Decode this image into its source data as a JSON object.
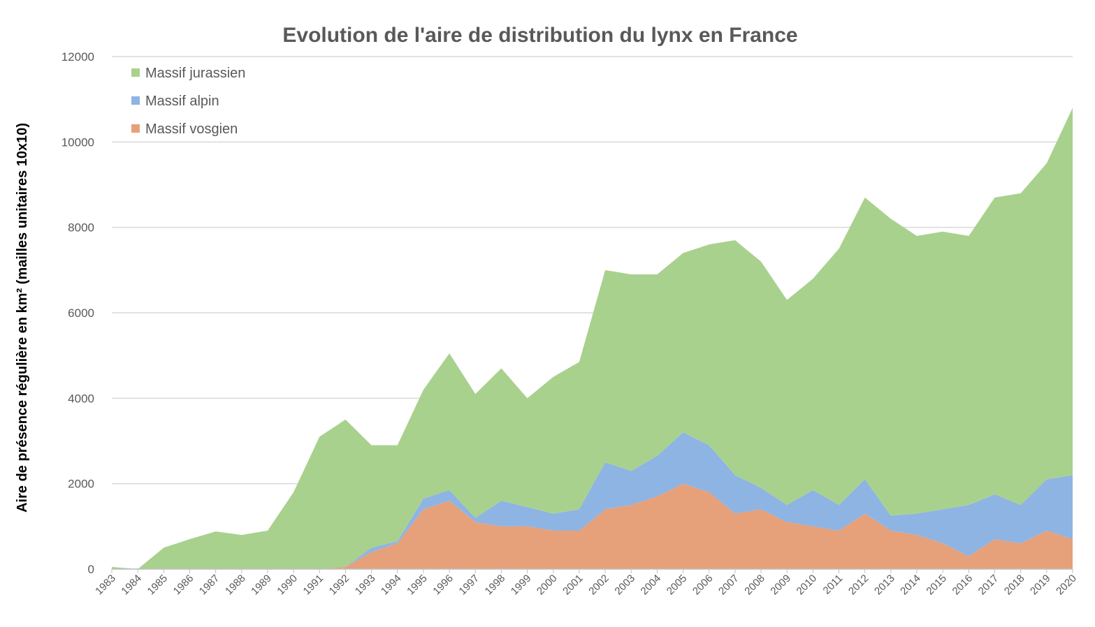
{
  "chart_data": {
    "type": "stacked_area",
    "title": "Evolution de l'aire de distribution du lynx en France",
    "y_label": "Aire de présence régulière en km² (mailles unitaires 10x10)",
    "categories": [
      "1983",
      "1984",
      "1985",
      "1986",
      "1987",
      "1988",
      "1989",
      "1990",
      "1991",
      "1992",
      "1993",
      "1994",
      "1995",
      "1996",
      "1997",
      "1998",
      "1999",
      "2000",
      "2001",
      "2002",
      "2003",
      "2004",
      "2005",
      "2006",
      "2007",
      "2008",
      "2009",
      "2010",
      "2011",
      "2012",
      "2013",
      "2014",
      "2015",
      "2016",
      "2017",
      "2018",
      "2019",
      "2020"
    ],
    "series": [
      {
        "name": "Massif jurassien",
        "color": "#a9d18e",
        "values": [
          50,
          0,
          500,
          700,
          880,
          800,
          900,
          1800,
          3100,
          3450,
          2400,
          2250,
          2550,
          3200,
          2900,
          3100,
          2550,
          3200,
          3450,
          4500,
          4600,
          4250,
          4200,
          4700,
          5500,
          5300,
          4800,
          4950,
          6000,
          6600,
          6950,
          6500,
          6500,
          6300,
          6950,
          7300,
          7400,
          8600
        ]
      },
      {
        "name": "Massif alpin",
        "color": "#8eb4e3",
        "values": [
          0,
          0,
          0,
          0,
          0,
          0,
          0,
          0,
          0,
          0,
          100,
          50,
          250,
          250,
          100,
          600,
          450,
          400,
          500,
          1100,
          800,
          950,
          1200,
          1100,
          900,
          500,
          400,
          850,
          600,
          800,
          350,
          500,
          800,
          1200,
          1050,
          900,
          1200,
          1500
        ]
      },
      {
        "name": "Massif vosgien",
        "color": "#e6a07a",
        "values": [
          0,
          0,
          0,
          0,
          0,
          0,
          0,
          0,
          0,
          50,
          400,
          600,
          1400,
          1600,
          1100,
          1000,
          1000,
          900,
          900,
          1400,
          1500,
          1700,
          2000,
          1800,
          1300,
          1400,
          1100,
          1000,
          900,
          1300,
          900,
          800,
          600,
          300,
          700,
          600,
          900,
          700
        ]
      }
    ],
    "ylim": [
      0,
      12000
    ],
    "yticks": [
      0,
      2000,
      4000,
      6000,
      8000,
      10000,
      12000
    ],
    "grid": true,
    "legend": "top-left"
  }
}
